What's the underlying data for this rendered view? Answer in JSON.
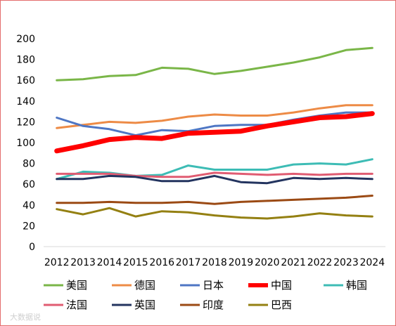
{
  "chart_data": {
    "type": "line",
    "x": [
      "2012",
      "2013",
      "2014",
      "2015",
      "2016",
      "2017",
      "2018",
      "2019",
      "2020",
      "2021",
      "2022",
      "2023",
      "2024"
    ],
    "ylim": [
      0,
      200
    ],
    "yticks": [
      0,
      20,
      40,
      60,
      80,
      100,
      120,
      140,
      160,
      180,
      200
    ],
    "grid": false,
    "legend_position": "bottom",
    "series": [
      {
        "name": "美国",
        "color": "#7ab648",
        "width": 3,
        "values": [
          160,
          161,
          164,
          165,
          172,
          171,
          166,
          169,
          173,
          177,
          182,
          189,
          191
        ]
      },
      {
        "name": "德国",
        "color": "#ed8b46",
        "width": 3,
        "values": [
          114,
          117,
          120,
          119,
          121,
          125,
          127,
          126,
          126,
          129,
          133,
          136,
          136
        ]
      },
      {
        "name": "日本",
        "color": "#4e76c4",
        "width": 3,
        "values": [
          124,
          116,
          113,
          107,
          112,
          111,
          116,
          117,
          117,
          122,
          126,
          129,
          129
        ]
      },
      {
        "name": "中国",
        "color": "#ff0000",
        "width": 7,
        "values": [
          92,
          97,
          103,
          105,
          104,
          109,
          110,
          111,
          116,
          120,
          124,
          125,
          128
        ]
      },
      {
        "name": "韩国",
        "color": "#3dbcb5",
        "width": 3,
        "values": [
          65,
          72,
          71,
          68,
          69,
          78,
          74,
          74,
          74,
          79,
          80,
          79,
          84
        ]
      },
      {
        "name": "法国",
        "color": "#e05c72",
        "width": 3,
        "values": [
          70,
          70,
          70,
          68,
          67,
          67,
          71,
          70,
          69,
          70,
          69,
          70,
          70
        ]
      },
      {
        "name": "英国",
        "color": "#23345f",
        "width": 3,
        "values": [
          65,
          65,
          68,
          67,
          63,
          63,
          68,
          62,
          61,
          66,
          65,
          66,
          65
        ]
      },
      {
        "name": "印度",
        "color": "#9b4a14",
        "width": 3,
        "values": [
          42,
          42,
          43,
          42,
          42,
          43,
          41,
          43,
          44,
          45,
          46,
          47,
          49
        ]
      },
      {
        "name": "巴西",
        "color": "#948012",
        "width": 3,
        "values": [
          36,
          31,
          37,
          29,
          34,
          33,
          30,
          28,
          27,
          29,
          32,
          30,
          29
        ]
      }
    ]
  },
  "watermark": "大数据说"
}
